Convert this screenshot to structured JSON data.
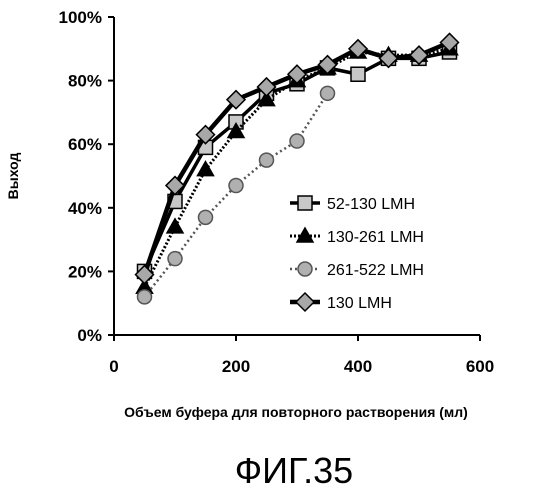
{
  "chart_data": {
    "type": "line",
    "xlabel": "Объем буфера для повторного растворения (мл)",
    "ylabel": "Выход",
    "xlim": [
      0,
      600
    ],
    "ylim": [
      0,
      100
    ],
    "x_ticks": [
      "0",
      "200",
      "400",
      "600"
    ],
    "y_ticks": [
      "0%",
      "20%",
      "40%",
      "60%",
      "80%",
      "100%"
    ],
    "grid": false,
    "legend_position": "center-right",
    "series": [
      {
        "name": "52-130 LMH",
        "marker": "square",
        "color": "#000000",
        "fill": "#c8c8c8",
        "points": [
          [
            50,
            20
          ],
          [
            100,
            42
          ],
          [
            150,
            59
          ],
          [
            200,
            67
          ],
          [
            250,
            76
          ],
          [
            300,
            79
          ],
          [
            350,
            84
          ],
          [
            400,
            82
          ],
          [
            450,
            87
          ],
          [
            500,
            87
          ],
          [
            550,
            89
          ]
        ]
      },
      {
        "name": "130-261 LMH",
        "marker": "triangle",
        "color": "#000000",
        "fill": "#000000",
        "points": [
          [
            50,
            15
          ],
          [
            100,
            34
          ],
          [
            150,
            52
          ],
          [
            200,
            64
          ],
          [
            250,
            74
          ],
          [
            300,
            80
          ],
          [
            350,
            84
          ],
          [
            400,
            89
          ],
          [
            450,
            88
          ],
          [
            500,
            88
          ],
          [
            550,
            90
          ]
        ]
      },
      {
        "name": "261-522 LMH",
        "marker": "circle",
        "color": "#555555",
        "fill": "#b0b0b0",
        "points": [
          [
            50,
            12
          ],
          [
            100,
            24
          ],
          [
            150,
            37
          ],
          [
            200,
            47
          ],
          [
            250,
            55
          ],
          [
            300,
            61
          ],
          [
            350,
            76
          ]
        ]
      },
      {
        "name": "130 LMH",
        "marker": "diamond",
        "color": "#000000",
        "fill": "#a8a8a8",
        "points": [
          [
            50,
            19
          ],
          [
            100,
            47
          ],
          [
            150,
            63
          ],
          [
            200,
            74
          ],
          [
            250,
            78
          ],
          [
            300,
            82
          ],
          [
            350,
            85
          ],
          [
            400,
            90
          ],
          [
            450,
            87
          ],
          [
            500,
            88
          ],
          [
            550,
            92
          ]
        ]
      }
    ]
  },
  "caption": "ФИГ.35"
}
